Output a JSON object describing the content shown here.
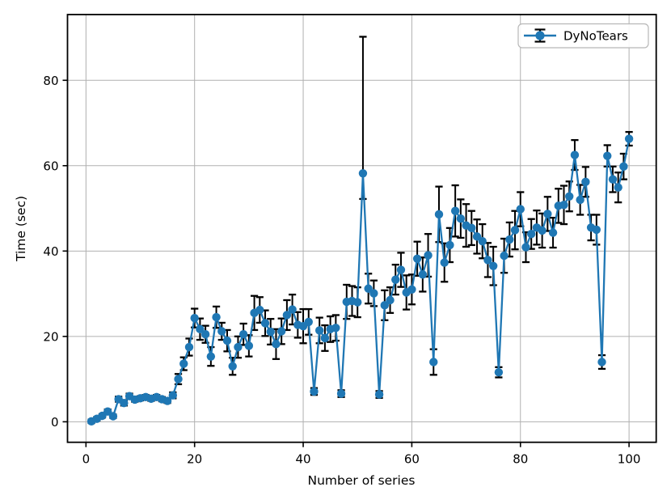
{
  "figure": {
    "background": "#ffffff",
    "spine_color": "#000000",
    "grid_color": "#b0b0b0"
  },
  "chart_data": {
    "type": "line",
    "subtype": "errorbar",
    "title": "",
    "xlabel": "Number of series",
    "ylabel": "Time (sec)",
    "grid": true,
    "legend_position": "upper right",
    "xlim": [
      -3.4,
      105.0
    ],
    "ylim": [
      -4.8,
      95.4
    ],
    "xticks": [
      0,
      20,
      40,
      60,
      80,
      100
    ],
    "yticks": [
      0,
      20,
      40,
      60,
      80
    ],
    "xtick_labels": [
      "0",
      "20",
      "40",
      "60",
      "80",
      "100"
    ],
    "ytick_labels": [
      "0",
      "20",
      "40",
      "60",
      "80"
    ],
    "series": [
      {
        "name": "DyNoTears",
        "color": "#1f77b4",
        "errorbar_color": "#000000",
        "marker": "circle",
        "x": [
          1,
          2,
          3,
          4,
          5,
          6,
          7,
          8,
          9,
          10,
          11,
          12,
          13,
          14,
          15,
          16,
          17,
          18,
          19,
          20,
          21,
          22,
          23,
          24,
          25,
          26,
          27,
          28,
          29,
          30,
          31,
          32,
          33,
          34,
          35,
          36,
          37,
          38,
          39,
          40,
          41,
          42,
          43,
          44,
          45,
          46,
          47,
          48,
          49,
          50,
          51,
          52,
          53,
          54,
          55,
          56,
          57,
          58,
          59,
          60,
          61,
          62,
          63,
          64,
          65,
          66,
          67,
          68,
          69,
          70,
          71,
          72,
          73,
          74,
          75,
          76,
          77,
          78,
          79,
          80,
          81,
          82,
          83,
          84,
          85,
          86,
          87,
          88,
          89,
          90,
          91,
          92,
          93,
          94,
          95,
          96,
          97,
          98,
          99,
          100
        ],
        "values": [
          0.1,
          0.7,
          1.4,
          2.4,
          1.3,
          5.3,
          4.4,
          6.0,
          5.2,
          5.5,
          5.8,
          5.4,
          5.8,
          5.3,
          4.9,
          6.2,
          10.0,
          13.6,
          17.5,
          24.3,
          21.7,
          20.5,
          15.3,
          24.5,
          21.2,
          19.0,
          13.0,
          17.5,
          20.5,
          17.8,
          25.5,
          26.2,
          23.1,
          21.1,
          18.2,
          21.2,
          25.0,
          26.3,
          22.7,
          22.4,
          23.4,
          7.1,
          21.4,
          19.6,
          21.7,
          22.0,
          6.6,
          28.1,
          28.3,
          28.0,
          58.2,
          31.2,
          30.1,
          6.4,
          27.3,
          28.5,
          33.3,
          35.6,
          30.3,
          31.0,
          38.2,
          34.5,
          39.0,
          14.0,
          48.6,
          37.3,
          41.4,
          49.4,
          47.6,
          46.0,
          45.4,
          43.4,
          42.3,
          37.9,
          36.5,
          11.6,
          38.9,
          42.7,
          44.9,
          49.8,
          40.9,
          44.0,
          45.5,
          44.8,
          48.7,
          44.3,
          50.6,
          50.8,
          52.8,
          62.5,
          52.0,
          56.2,
          45.5,
          45.0,
          14.0,
          62.3,
          56.8,
          54.9,
          59.8,
          66.3
        ],
        "err_up": [
          0.4,
          0.4,
          0.4,
          0.5,
          0.4,
          0.6,
          0.6,
          0.6,
          0.5,
          0.5,
          0.5,
          0.5,
          0.5,
          0.5,
          0.5,
          0.7,
          1.2,
          1.5,
          2.0,
          2.2,
          2.5,
          2.0,
          2.2,
          2.5,
          2.0,
          2.5,
          2.0,
          2.5,
          2.5,
          2.5,
          4.0,
          3.0,
          3.0,
          3.0,
          3.5,
          3.0,
          3.5,
          3.5,
          3.0,
          4.0,
          3.0,
          0.8,
          3.0,
          3.0,
          3.0,
          3.0,
          0.8,
          4.0,
          3.5,
          3.5,
          32.0,
          3.5,
          3.0,
          0.8,
          3.5,
          3.0,
          3.5,
          4.0,
          4.0,
          3.5,
          4.0,
          4.0,
          5.0,
          3.0,
          6.5,
          4.5,
          4.0,
          6.0,
          4.5,
          5.0,
          4.0,
          4.0,
          4.0,
          4.0,
          4.5,
          1.2,
          4.0,
          4.0,
          4.5,
          4.0,
          3.5,
          3.5,
          4.0,
          4.0,
          4.0,
          3.5,
          4.0,
          4.5,
          3.5,
          3.5,
          3.5,
          3.5,
          3.0,
          3.5,
          1.6,
          2.5,
          3.0,
          3.5,
          3.0,
          1.6
        ],
        "err_down": [
          0.4,
          0.4,
          0.4,
          0.5,
          0.4,
          0.6,
          0.6,
          0.6,
          0.5,
          0.5,
          0.5,
          0.5,
          0.5,
          0.5,
          0.5,
          0.7,
          1.2,
          1.5,
          2.0,
          2.2,
          2.5,
          2.0,
          2.2,
          2.5,
          2.0,
          2.5,
          2.0,
          2.5,
          2.5,
          2.5,
          4.0,
          3.0,
          3.0,
          3.0,
          3.5,
          3.0,
          3.5,
          3.5,
          3.0,
          4.0,
          3.0,
          0.8,
          3.0,
          3.0,
          3.0,
          3.0,
          0.8,
          4.0,
          3.5,
          3.5,
          6.0,
          3.5,
          3.0,
          0.8,
          3.5,
          3.0,
          3.5,
          4.0,
          4.0,
          3.5,
          4.0,
          4.0,
          5.0,
          3.0,
          6.5,
          4.5,
          4.0,
          6.0,
          4.5,
          5.0,
          4.0,
          4.0,
          4.0,
          4.0,
          4.5,
          1.2,
          4.0,
          4.0,
          4.5,
          4.0,
          3.5,
          3.5,
          4.0,
          4.0,
          4.0,
          3.5,
          4.0,
          4.5,
          3.5,
          3.5,
          3.5,
          3.5,
          3.0,
          3.5,
          1.6,
          2.5,
          3.0,
          3.5,
          3.0,
          1.6
        ]
      }
    ],
    "legend": {
      "label": "DyNoTears"
    }
  }
}
